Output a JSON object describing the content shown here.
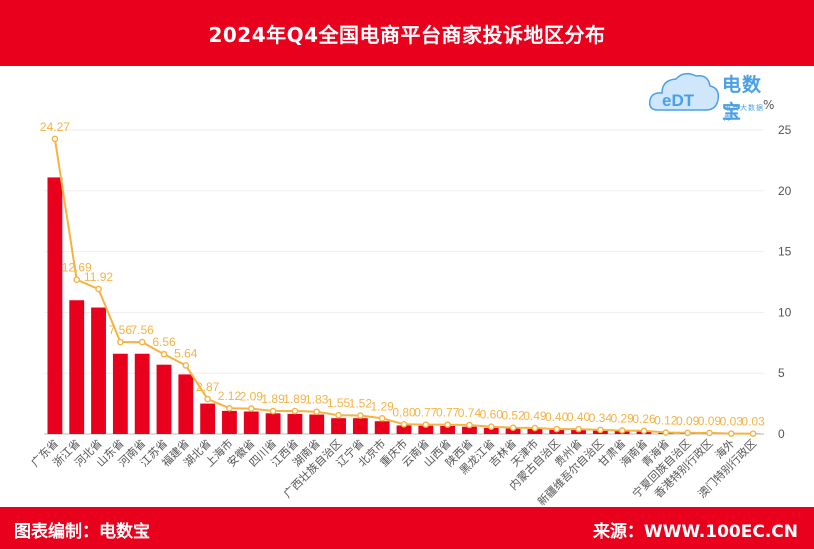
{
  "title": "2024年Q4全国电商平台商家投诉地区分布",
  "footer": {
    "left": "图表编制：电数宝",
    "right": "来源：WWW.100EC.CN"
  },
  "logo": {
    "name": "电数宝",
    "sub": "电商大数据库",
    "mark": "eDT"
  },
  "colors": {
    "header": "#e8001c",
    "bar": "#e8001c",
    "line": "#f5b342",
    "label": "#f5b342"
  },
  "chart_data": {
    "type": "bar",
    "title": "2024年Q4全国电商平台商家投诉地区分布",
    "unit": "%",
    "ylim": [
      0,
      25
    ],
    "yticks": [
      0,
      5,
      10,
      15,
      20,
      25
    ],
    "grid": true,
    "categories": [
      "广东省",
      "浙江省",
      "河北省",
      "山东省",
      "河南省",
      "江苏省",
      "福建省",
      "湖北省",
      "上海市",
      "安徽省",
      "四川省",
      "江西省",
      "湖南省",
      "广西壮族自治区",
      "辽宁省",
      "北京市",
      "重庆市",
      "云南省",
      "山西省",
      "陕西省",
      "黑龙江省",
      "吉林省",
      "天津市",
      "内蒙古自治区",
      "贵州省",
      "新疆维吾尔自治区",
      "甘肃省",
      "海南省",
      "青海省",
      "宁夏回族自治区",
      "香港特别行政区",
      "海外",
      "澳门特别行政区"
    ],
    "series": [
      {
        "values": [
          21.1,
          11.0,
          10.4,
          6.6,
          6.6,
          5.7,
          4.9,
          2.5,
          1.9,
          1.85,
          1.7,
          1.65,
          1.6,
          1.3,
          1.3,
          1.05,
          0.7,
          0.68,
          0.66,
          0.6,
          0.5,
          0.45,
          0.42,
          0.35,
          0.34,
          0.28,
          0.25,
          0.22,
          0.1,
          0.08,
          0.07,
          0.02,
          0.02
        ]
      },
      {
        "type": "line",
        "values": [
          24.27,
          12.69,
          11.92,
          7.56,
          7.56,
          6.56,
          5.64,
          2.87,
          2.12,
          2.09,
          1.89,
          1.89,
          1.83,
          1.55,
          1.52,
          1.29,
          0.8,
          0.77,
          0.77,
          0.74,
          0.6,
          0.52,
          0.49,
          0.4,
          0.4,
          0.34,
          0.29,
          0.26,
          0.12,
          0.09,
          0.09,
          0.03,
          0.03
        ],
        "labels": [
          "24.27",
          "12.69",
          "11.92",
          "7.56",
          "7.56",
          "6.56",
          "5.64",
          "2.87",
          "2.12",
          "2.09",
          "1.89",
          "1.89",
          "1.83",
          "1.55",
          "1.52",
          "1.29",
          "0.80",
          "0.77",
          "0.77",
          "0.74",
          "0.60",
          "0.52",
          "0.49",
          "0.40",
          "0.40",
          "0.34",
          "0.29",
          "0.26",
          "0.12",
          "0.09",
          "0.09",
          "0.03",
          "0.03"
        ]
      }
    ]
  }
}
